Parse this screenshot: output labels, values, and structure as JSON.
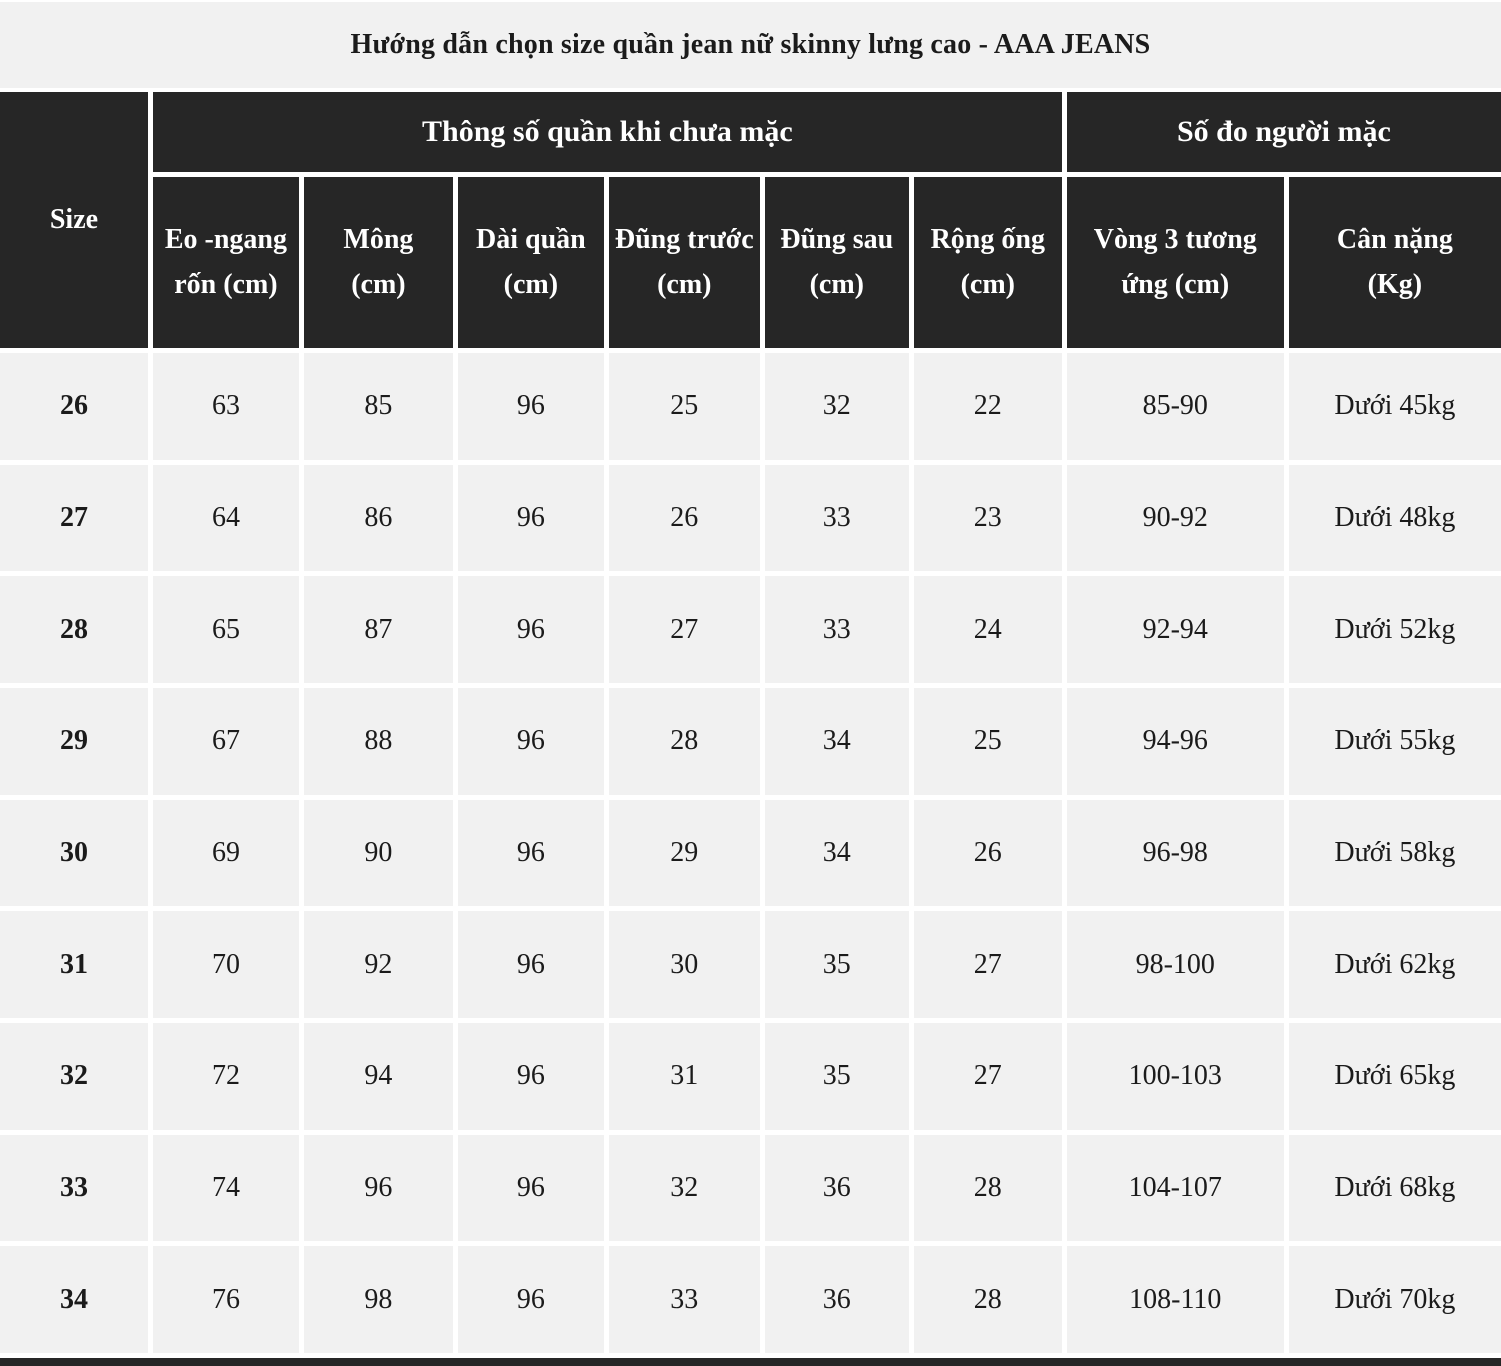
{
  "chart_data": {
    "type": "table",
    "title": "Hướng dẫn chọn size quần jean nữ skinny lưng cao - AAA JEANS",
    "corner_header": "Size",
    "group_headers": [
      {
        "label": "Thông số quần khi chưa mặc",
        "colspan": 6
      },
      {
        "label": "Số đo người mặc",
        "colspan": 2
      }
    ],
    "column_headers": [
      "Eo -ngang\nrốn (cm)",
      "Mông\n(cm)",
      "Dài quần\n(cm)",
      "Đũng trước\n(cm)",
      "Đũng sau\n(cm)",
      "Rộng ống\n(cm)",
      "Vòng 3 tương\nứng (cm)",
      "Cân nặng\n(Kg)"
    ],
    "rows": [
      {
        "size": "26",
        "values": [
          "63",
          "85",
          "96",
          "25",
          "32",
          "22",
          "85-90",
          "Dưới 45kg"
        ]
      },
      {
        "size": "27",
        "values": [
          "64",
          "86",
          "96",
          "26",
          "33",
          "23",
          "90-92",
          "Dưới 48kg"
        ]
      },
      {
        "size": "28",
        "values": [
          "65",
          "87",
          "96",
          "27",
          "33",
          "24",
          "92-94",
          "Dưới 52kg"
        ]
      },
      {
        "size": "29",
        "values": [
          "67",
          "88",
          "96",
          "28",
          "34",
          "25",
          "94-96",
          "Dưới 55kg"
        ]
      },
      {
        "size": "30",
        "values": [
          "69",
          "90",
          "96",
          "29",
          "34",
          "26",
          "96-98",
          "Dưới 58kg"
        ]
      },
      {
        "size": "31",
        "values": [
          "70",
          "92",
          "96",
          "30",
          "35",
          "27",
          "98-100",
          "Dưới 62kg"
        ]
      },
      {
        "size": "32",
        "values": [
          "72",
          "94",
          "96",
          "31",
          "35",
          "27",
          "100-103",
          "Dưới 65kg"
        ]
      },
      {
        "size": "33",
        "values": [
          "74",
          "96",
          "96",
          "32",
          "36",
          "28",
          "104-107",
          "Dưới 68kg"
        ]
      },
      {
        "size": "34",
        "values": [
          "76",
          "98",
          "96",
          "33",
          "36",
          "28",
          "108-110",
          "Dưới 70kg"
        ]
      }
    ]
  },
  "colors": {
    "header_bg": "#262626",
    "header_text": "#ffffff",
    "row_bg": "#f1f1f1",
    "grid_line": "#ffffff",
    "body_text": "#1b1b1b"
  }
}
